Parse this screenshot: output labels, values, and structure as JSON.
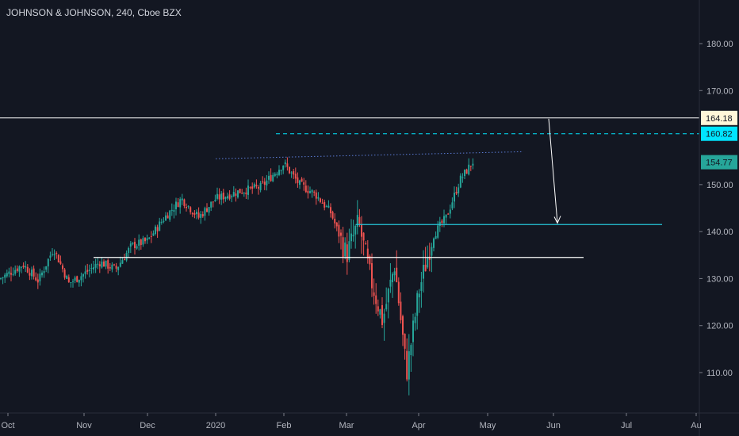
{
  "chart_data": {
    "type": "candlestick",
    "title": "JOHNSON & JOHNSON, 240, Cboe BZX",
    "x_ticks": [
      "Oct",
      "Nov",
      "Dec",
      "2020",
      "Feb",
      "Mar",
      "Apr",
      "May",
      "Jun",
      "Jul",
      "Au"
    ],
    "y_ticks": [
      "180.00",
      "170.00",
      "150.00",
      "140.00",
      "130.00",
      "120.00",
      "110.00"
    ],
    "ylim": [
      104,
      188
    ],
    "price_labels": [
      {
        "value": 164.18,
        "text": "164.18",
        "color": "#fff7d9",
        "kind": "resistance-line"
      },
      {
        "value": 160.82,
        "text": "160.82",
        "color": "#00e5ff",
        "kind": "dashed-target"
      },
      {
        "value": 154.77,
        "text": "154.77",
        "color": "#26a69a",
        "kind": "last-price"
      }
    ],
    "horizontal_levels": [
      {
        "value": 134.5,
        "color": "#ffffff",
        "from": "Nov",
        "to": "Jun"
      },
      {
        "value": 141.5,
        "color": "#26c6da",
        "from": "Mar",
        "to": "Jul"
      }
    ],
    "dotted_trendline": {
      "start": [
        155.5,
        "Dec"
      ],
      "end": [
        157.0,
        "May"
      ],
      "color": "#5b7bd5"
    },
    "arrow": {
      "from": [
        164.0,
        "Jun"
      ],
      "to": [
        141.8,
        "Jun"
      ],
      "color": "#ffffff"
    },
    "colors": {
      "up": "#26a69a",
      "down": "#ef5350",
      "background": "#131722"
    },
    "price_path": [
      {
        "d": "Oct",
        "price": 130.0
      },
      {
        "d": "Oct",
        "price": 133.0
      },
      {
        "d": "Oct",
        "price": 129.5
      },
      {
        "d": "Oct",
        "price": 136.5
      },
      {
        "d": "Oct",
        "price": 129.0
      },
      {
        "d": "Nov",
        "price": 131.0
      },
      {
        "d": "Nov",
        "price": 133.5
      },
      {
        "d": "Nov",
        "price": 132.0
      },
      {
        "d": "Nov",
        "price": 137.0
      },
      {
        "d": "Dec",
        "price": 138.0
      },
      {
        "d": "Dec",
        "price": 143.0
      },
      {
        "d": "Dec",
        "price": 147.0
      },
      {
        "d": "Dec",
        "price": 143.0
      },
      {
        "d": "2020",
        "price": 147.0
      },
      {
        "d": "2020",
        "price": 148.5
      },
      {
        "d": "2020",
        "price": 149.5
      },
      {
        "d": "Feb",
        "price": 154.5
      },
      {
        "d": "Feb",
        "price": 150.0
      },
      {
        "d": "Feb",
        "price": 148.0
      },
      {
        "d": "Feb",
        "price": 144.0
      },
      {
        "d": "Mar",
        "price": 135.0
      },
      {
        "d": "Mar",
        "price": 142.0
      },
      {
        "d": "Mar",
        "price": 130.0
      },
      {
        "d": "Mar",
        "price": 121.0
      },
      {
        "d": "Mar",
        "price": 133.0
      },
      {
        "d": "Mar",
        "price": 110.0
      },
      {
        "d": "Apr",
        "price": 127.0
      },
      {
        "d": "Apr",
        "price": 139.0
      },
      {
        "d": "Apr",
        "price": 143.0
      },
      {
        "d": "Apr",
        "price": 151.0
      },
      {
        "d": "Apr",
        "price": 155.0
      }
    ]
  }
}
